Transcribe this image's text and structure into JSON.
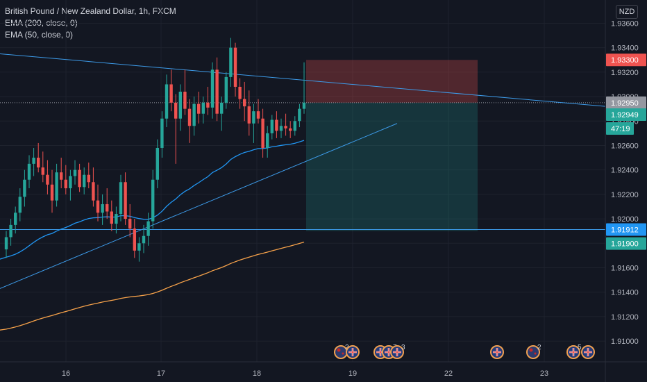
{
  "legend": {
    "title": "British Pound / New Zealand Dollar, 1h, FXCM",
    "ema200": "EMA (200, close, 0)",
    "ema50": "EMA (50, close, 0)"
  },
  "currency_button": "NZD",
  "colors": {
    "background": "#131722",
    "up": "#26a69a",
    "down": "#ef5350",
    "ema50": "#2196f3",
    "ema200": "#f7a24a",
    "trendline": "#3d9be9",
    "price_tag": "#ef5350",
    "profit_zone": "rgba(38,166,154,0.22)",
    "loss_zone": "rgba(239,83,80,0.28)"
  },
  "chart_data": {
    "type": "candlestick",
    "symbol": "GBPNZD",
    "timeframe": "1h",
    "x_ticks": [
      "16",
      "17",
      "18",
      "19",
      "22",
      "23"
    ],
    "y_ticks": [
      "1.93600",
      "1.93400",
      "1.93200",
      "1.93000",
      "1.92800",
      "1.92600",
      "1.92400",
      "1.92200",
      "1.92000",
      "1.91800",
      "1.91600",
      "1.91400",
      "1.91200",
      "1.91000"
    ],
    "ylim": [
      1.9083,
      1.9379
    ],
    "price_labels": [
      {
        "value": "1.93300",
        "kind": "stop-loss"
      },
      {
        "value": "1.92950",
        "kind": "entry"
      },
      {
        "value": "1.92949",
        "kind": "last-price"
      },
      {
        "value": "47:19",
        "kind": "countdown"
      },
      {
        "value": "1.91912",
        "kind": "horizontal-line"
      },
      {
        "value": "1.91900",
        "kind": "take-profit"
      }
    ],
    "position": {
      "side": "short",
      "entry": 1.9295,
      "stop": 1.933,
      "target": 1.919
    },
    "horizontal_line": 1.91912,
    "trendlines": [
      {
        "name": "descending",
        "from": 1.9335,
        "to": 1.9292
      },
      {
        "name": "ascending",
        "from": 1.9143,
        "to": 1.9278
      }
    ],
    "events": [
      {
        "count": "2"
      },
      {
        "count": ""
      },
      {
        "count": ""
      },
      {
        "count": "7"
      },
      {
        "count": "3"
      },
      {
        "count": ""
      },
      {
        "count": "2"
      },
      {
        "count": "5"
      },
      {
        "count": ""
      }
    ],
    "candles": [
      [
        1.9175,
        1.919,
        1.9168,
        1.9185
      ],
      [
        1.9185,
        1.92,
        1.9178,
        1.9195
      ],
      [
        1.9195,
        1.921,
        1.9188,
        1.9205
      ],
      [
        1.9205,
        1.9225,
        1.9198,
        1.9218
      ],
      [
        1.9218,
        1.924,
        1.921,
        1.9232
      ],
      [
        1.9232,
        1.9252,
        1.9225,
        1.9245
      ],
      [
        1.9245,
        1.9258,
        1.9235,
        1.925
      ],
      [
        1.925,
        1.9262,
        1.9238,
        1.9242
      ],
      [
        1.9242,
        1.9255,
        1.923,
        1.9236
      ],
      [
        1.9236,
        1.9248,
        1.922,
        1.9228
      ],
      [
        1.9228,
        1.924,
        1.9205,
        1.9215
      ],
      [
        1.9215,
        1.9245,
        1.921,
        1.9238
      ],
      [
        1.9238,
        1.925,
        1.9225,
        1.9232
      ],
      [
        1.9232,
        1.9244,
        1.922,
        1.9225
      ],
      [
        1.9225,
        1.924,
        1.9215,
        1.9235
      ],
      [
        1.9235,
        1.9248,
        1.9228,
        1.924
      ],
      [
        1.924,
        1.9245,
        1.9222,
        1.9226
      ],
      [
        1.9226,
        1.9242,
        1.922,
        1.9236
      ],
      [
        1.9236,
        1.9246,
        1.9225,
        1.923
      ],
      [
        1.923,
        1.9242,
        1.921,
        1.9215
      ],
      [
        1.9215,
        1.9228,
        1.9198,
        1.9205
      ],
      [
        1.9205,
        1.922,
        1.9195,
        1.9212
      ],
      [
        1.9212,
        1.9225,
        1.92,
        1.9206
      ],
      [
        1.9206,
        1.9215,
        1.919,
        1.9196
      ],
      [
        1.9196,
        1.921,
        1.9188,
        1.9204
      ],
      [
        1.9204,
        1.9236,
        1.9198,
        1.923
      ],
      [
        1.923,
        1.9238,
        1.9195,
        1.92
      ],
      [
        1.92,
        1.9212,
        1.9185,
        1.9192
      ],
      [
        1.9192,
        1.92,
        1.9168,
        1.9174
      ],
      [
        1.9174,
        1.9185,
        1.9165,
        1.918
      ],
      [
        1.918,
        1.9195,
        1.9172,
        1.9186
      ],
      [
        1.9186,
        1.9205,
        1.9178,
        1.9198
      ],
      [
        1.9198,
        1.924,
        1.9192,
        1.9232
      ],
      [
        1.9232,
        1.9265,
        1.9225,
        1.9258
      ],
      [
        1.9258,
        1.9288,
        1.925,
        1.9282
      ],
      [
        1.9282,
        1.9318,
        1.9275,
        1.931
      ],
      [
        1.931,
        1.9322,
        1.9288,
        1.9295
      ],
      [
        1.9295,
        1.9302,
        1.9245,
        1.9282
      ],
      [
        1.9282,
        1.931,
        1.9272,
        1.9304
      ],
      [
        1.9304,
        1.9322,
        1.9285,
        1.929
      ],
      [
        1.929,
        1.9298,
        1.9262,
        1.9276
      ],
      [
        1.9276,
        1.93,
        1.9268,
        1.9294
      ],
      [
        1.9294,
        1.9304,
        1.9278,
        1.9286
      ],
      [
        1.9286,
        1.93,
        1.9278,
        1.9295
      ],
      [
        1.9295,
        1.9308,
        1.9285,
        1.9291
      ],
      [
        1.9291,
        1.9328,
        1.9282,
        1.9322
      ],
      [
        1.9322,
        1.9332,
        1.928,
        1.9286
      ],
      [
        1.9286,
        1.93,
        1.9272,
        1.9295
      ],
      [
        1.9295,
        1.932,
        1.929,
        1.9316
      ],
      [
        1.9316,
        1.9348,
        1.9308,
        1.934
      ],
      [
        1.934,
        1.9344,
        1.93,
        1.9308
      ],
      [
        1.9308,
        1.9315,
        1.929,
        1.9298
      ],
      [
        1.9298,
        1.9312,
        1.928,
        1.9292
      ],
      [
        1.9292,
        1.9305,
        1.9268,
        1.9278
      ],
      [
        1.9278,
        1.9294,
        1.9262,
        1.9288
      ],
      [
        1.9288,
        1.9298,
        1.9278,
        1.9282
      ],
      [
        1.9282,
        1.929,
        1.925,
        1.9258
      ],
      [
        1.9258,
        1.9276,
        1.925,
        1.927
      ],
      [
        1.927,
        1.9285,
        1.9265,
        1.9281
      ],
      [
        1.9281,
        1.9288,
        1.9266,
        1.9272
      ],
      [
        1.9272,
        1.9282,
        1.9266,
        1.9276
      ],
      [
        1.9276,
        1.9286,
        1.9268,
        1.9274
      ],
      [
        1.9274,
        1.928,
        1.9266,
        1.9272
      ],
      [
        1.9272,
        1.9284,
        1.9268,
        1.928
      ],
      [
        1.928,
        1.9294,
        1.9275,
        1.929
      ],
      [
        1.929,
        1.9328,
        1.9286,
        1.9295
      ]
    ]
  }
}
